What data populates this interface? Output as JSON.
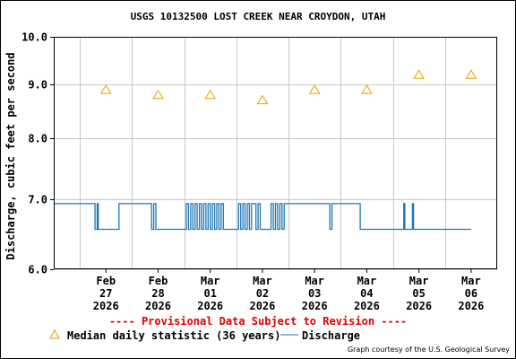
{
  "chart_data": {
    "type": "line",
    "title": "USGS 10132500 LOST CREEK NEAR CROYDON, UTAH",
    "ylabel": "Discharge, cubic feet per second",
    "xlabel": "",
    "y_scale": "log",
    "ylim": [
      6.0,
      10.0
    ],
    "y_ticks": [
      "10.0",
      "9.0",
      "8.0",
      "7.0",
      "6.0"
    ],
    "y_tick_values": [
      10.0,
      9.0,
      8.0,
      7.0,
      6.0
    ],
    "grid": true,
    "x_range": [
      "2026-02-26 12:00",
      "2026-03-07 00:00"
    ],
    "x_ticks": [
      {
        "month": "Feb",
        "day": "27",
        "year": "2026",
        "t": "2026-02-27 12:00"
      },
      {
        "month": "Feb",
        "day": "28",
        "year": "2026",
        "t": "2026-02-28 12:00"
      },
      {
        "month": "Mar",
        "day": "01",
        "year": "2026",
        "t": "2026-03-01 12:00"
      },
      {
        "month": "Mar",
        "day": "02",
        "year": "2026",
        "t": "2026-03-02 12:00"
      },
      {
        "month": "Mar",
        "day": "03",
        "year": "2026",
        "t": "2026-03-03 12:00"
      },
      {
        "month": "Mar",
        "day": "04",
        "year": "2026",
        "t": "2026-03-04 12:00"
      },
      {
        "month": "Mar",
        "day": "05",
        "year": "2026",
        "t": "2026-03-05 12:00"
      },
      {
        "month": "Mar",
        "day": "06",
        "year": "2026",
        "t": "2026-03-06 12:00"
      }
    ],
    "median": {
      "name": "Median daily statistic (36 years)",
      "marker": "triangle",
      "color": "#e8a000",
      "points": [
        {
          "t": "2026-02-27 12:00",
          "y": 8.9
        },
        {
          "t": "2026-02-28 12:00",
          "y": 8.8
        },
        {
          "t": "2026-03-01 12:00",
          "y": 8.8
        },
        {
          "t": "2026-03-02 12:00",
          "y": 8.7
        },
        {
          "t": "2026-03-03 12:00",
          "y": 8.9
        },
        {
          "t": "2026-03-04 12:00",
          "y": 8.9
        },
        {
          "t": "2026-03-05 12:00",
          "y": 9.2
        },
        {
          "t": "2026-03-06 12:00",
          "y": 9.2
        }
      ]
    },
    "discharge": {
      "name": "Discharge",
      "color": "#1f77b4",
      "levels": [
        6.93,
        6.55
      ],
      "steps": [
        {
          "t": "2026-02-26 12:00",
          "y": 6.93
        },
        {
          "t": "2026-02-27 07:00",
          "y": 6.55
        },
        {
          "t": "2026-02-27 08:00",
          "y": 6.93
        },
        {
          "t": "2026-02-27 08:30",
          "y": 6.55
        },
        {
          "t": "2026-02-27 18:00",
          "y": 6.93
        },
        {
          "t": "2026-02-28 09:00",
          "y": 6.55
        },
        {
          "t": "2026-02-28 10:00",
          "y": 6.93
        },
        {
          "t": "2026-02-28 11:00",
          "y": 6.55
        },
        {
          "t": "2026-03-01 01:00",
          "y": 6.93
        },
        {
          "t": "2026-03-01 02:00",
          "y": 6.55
        },
        {
          "t": "2026-03-01 03:00",
          "y": 6.93
        },
        {
          "t": "2026-03-01 04:00",
          "y": 6.55
        },
        {
          "t": "2026-03-01 05:00",
          "y": 6.93
        },
        {
          "t": "2026-03-01 06:00",
          "y": 6.55
        },
        {
          "t": "2026-03-01 07:00",
          "y": 6.93
        },
        {
          "t": "2026-03-01 08:00",
          "y": 6.55
        },
        {
          "t": "2026-03-01 09:00",
          "y": 6.93
        },
        {
          "t": "2026-03-01 10:00",
          "y": 6.55
        },
        {
          "t": "2026-03-01 11:00",
          "y": 6.93
        },
        {
          "t": "2026-03-01 12:00",
          "y": 6.55
        },
        {
          "t": "2026-03-01 13:00",
          "y": 6.93
        },
        {
          "t": "2026-03-01 14:00",
          "y": 6.55
        },
        {
          "t": "2026-03-01 15:00",
          "y": 6.93
        },
        {
          "t": "2026-03-01 16:00",
          "y": 6.55
        },
        {
          "t": "2026-03-01 17:00",
          "y": 6.93
        },
        {
          "t": "2026-03-01 18:00",
          "y": 6.55
        },
        {
          "t": "2026-03-02 01:00",
          "y": 6.93
        },
        {
          "t": "2026-03-02 02:00",
          "y": 6.55
        },
        {
          "t": "2026-03-02 03:00",
          "y": 6.93
        },
        {
          "t": "2026-03-02 04:00",
          "y": 6.55
        },
        {
          "t": "2026-03-02 05:00",
          "y": 6.93
        },
        {
          "t": "2026-03-02 06:00",
          "y": 6.55
        },
        {
          "t": "2026-03-02 07:00",
          "y": 6.93
        },
        {
          "t": "2026-03-02 09:00",
          "y": 6.55
        },
        {
          "t": "2026-03-02 10:00",
          "y": 6.93
        },
        {
          "t": "2026-03-02 11:00",
          "y": 6.55
        },
        {
          "t": "2026-03-02 16:00",
          "y": 6.93
        },
        {
          "t": "2026-03-02 17:00",
          "y": 6.55
        },
        {
          "t": "2026-03-02 18:00",
          "y": 6.93
        },
        {
          "t": "2026-03-02 19:00",
          "y": 6.55
        },
        {
          "t": "2026-03-02 20:00",
          "y": 6.93
        },
        {
          "t": "2026-03-02 21:00",
          "y": 6.55
        },
        {
          "t": "2026-03-02 22:00",
          "y": 6.93
        },
        {
          "t": "2026-03-03 19:00",
          "y": 6.55
        },
        {
          "t": "2026-03-03 20:00",
          "y": 6.93
        },
        {
          "t": "2026-03-04 09:00",
          "y": 6.55
        },
        {
          "t": "2026-03-05 05:00",
          "y": 6.93
        },
        {
          "t": "2026-03-05 05:30",
          "y": 6.55
        },
        {
          "t": "2026-03-05 09:00",
          "y": 6.93
        },
        {
          "t": "2026-03-05 09:30",
          "y": 6.55
        },
        {
          "t": "2026-03-06 12:00",
          "y": 6.55
        }
      ]
    }
  },
  "footer": {
    "provisional": "---- Provisional Data Subject to Revision ----",
    "credit": "Graph courtesy of the U.S. Geological Survey"
  },
  "colors": {
    "provisional": "#e00000",
    "median": "#e8a000",
    "discharge": "#1f77b4",
    "grid": "#c8c8c8"
  }
}
